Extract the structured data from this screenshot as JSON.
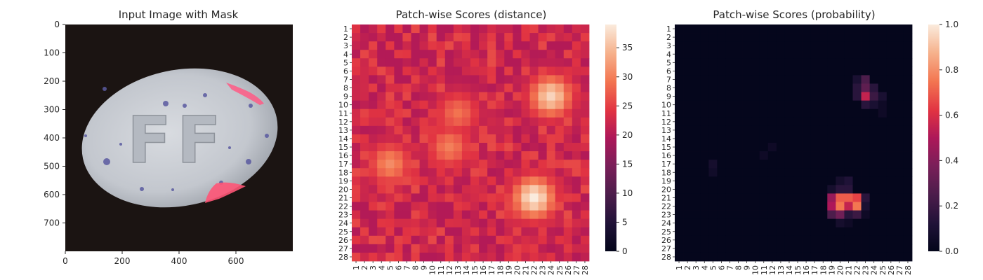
{
  "panels": {
    "image": {
      "title": "Input Image with Mask",
      "x_ticks": [
        "0",
        "200",
        "400",
        "600"
      ],
      "y_ticks": [
        "0",
        "100",
        "200",
        "300",
        "400",
        "500",
        "600",
        "700"
      ],
      "x_range": [
        0,
        800
      ],
      "y_range": [
        0,
        800
      ],
      "pill_imprint": "FF",
      "mask_color": "#ff5577"
    },
    "distance": {
      "title": "Patch-wise Scores (distance)",
      "colorbar_ticks": [
        "0",
        "5",
        "10",
        "15",
        "20",
        "25",
        "30",
        "35"
      ]
    },
    "probability": {
      "title": "Patch-wise Scores (probability)",
      "colorbar_ticks": [
        "0.0",
        "0.2",
        "0.4",
        "0.6",
        "0.8",
        "1.0"
      ]
    }
  },
  "chart_data": [
    {
      "type": "image",
      "title": "Input Image with Mask",
      "x_range": [
        0,
        800
      ],
      "y_range": [
        800,
        0
      ],
      "x_ticks": [
        0,
        200,
        400,
        600
      ],
      "y_ticks": [
        0,
        100,
        200,
        300,
        400,
        500,
        600,
        700
      ]
    },
    {
      "type": "heatmap",
      "title": "Patch-wise Scores (distance)",
      "rows": 28,
      "cols": 28,
      "tick_labels": [
        "1",
        "2",
        "3",
        "4",
        "5",
        "6",
        "7",
        "8",
        "9",
        "10",
        "11",
        "12",
        "13",
        "14",
        "15",
        "16",
        "17",
        "18",
        "19",
        "20",
        "21",
        "22",
        "23",
        "24",
        "25",
        "26",
        "27",
        "28"
      ],
      "value_range": [
        0,
        39
      ],
      "colormap": "rocket",
      "baseline": 22,
      "hotspots": [
        {
          "row": 9,
          "col": 24,
          "peak": 37
        },
        {
          "row": 21,
          "col": 22,
          "peak": 39
        },
        {
          "row": 11,
          "col": 13,
          "peak": 29
        },
        {
          "row": 15,
          "col": 12,
          "peak": 30
        },
        {
          "row": 17,
          "col": 5,
          "peak": 31
        }
      ]
    },
    {
      "type": "heatmap",
      "title": "Patch-wise Scores (probability)",
      "rows": 28,
      "cols": 28,
      "tick_labels": [
        "1",
        "2",
        "3",
        "4",
        "5",
        "6",
        "7",
        "8",
        "9",
        "10",
        "11",
        "12",
        "13",
        "14",
        "15",
        "16",
        "17",
        "18",
        "19",
        "20",
        "21",
        "22",
        "23",
        "24",
        "25",
        "26",
        "27",
        "28"
      ],
      "value_range": [
        0.0,
        1.0
      ],
      "colormap": "rocket",
      "cells": [
        {
          "row": 7,
          "col": 22,
          "value": 0.1
        },
        {
          "row": 7,
          "col": 23,
          "value": 0.25
        },
        {
          "row": 8,
          "col": 22,
          "value": 0.15
        },
        {
          "row": 8,
          "col": 23,
          "value": 0.3
        },
        {
          "row": 8,
          "col": 24,
          "value": 0.15
        },
        {
          "row": 9,
          "col": 22,
          "value": 0.15
        },
        {
          "row": 9,
          "col": 23,
          "value": 0.55
        },
        {
          "row": 9,
          "col": 24,
          "value": 0.2
        },
        {
          "row": 9,
          "col": 25,
          "value": 0.1
        },
        {
          "row": 10,
          "col": 23,
          "value": 0.15
        },
        {
          "row": 10,
          "col": 24,
          "value": 0.1
        },
        {
          "row": 10,
          "col": 25,
          "value": 0.05
        },
        {
          "row": 11,
          "col": 25,
          "value": 0.05
        },
        {
          "row": 15,
          "col": 12,
          "value": 0.05
        },
        {
          "row": 16,
          "col": 11,
          "value": 0.05
        },
        {
          "row": 17,
          "col": 5,
          "value": 0.08
        },
        {
          "row": 18,
          "col": 5,
          "value": 0.06
        },
        {
          "row": 19,
          "col": 20,
          "value": 0.08
        },
        {
          "row": 19,
          "col": 21,
          "value": 0.12
        },
        {
          "row": 20,
          "col": 19,
          "value": 0.08
        },
        {
          "row": 20,
          "col": 20,
          "value": 0.15
        },
        {
          "row": 20,
          "col": 21,
          "value": 0.15
        },
        {
          "row": 21,
          "col": 19,
          "value": 0.45
        },
        {
          "row": 21,
          "col": 20,
          "value": 0.7
        },
        {
          "row": 21,
          "col": 21,
          "value": 0.7
        },
        {
          "row": 21,
          "col": 22,
          "value": 0.65
        },
        {
          "row": 21,
          "col": 23,
          "value": 0.15
        },
        {
          "row": 22,
          "col": 19,
          "value": 0.5
        },
        {
          "row": 22,
          "col": 20,
          "value": 0.75
        },
        {
          "row": 22,
          "col": 21,
          "value": 0.55
        },
        {
          "row": 22,
          "col": 22,
          "value": 0.75
        },
        {
          "row": 22,
          "col": 23,
          "value": 0.1
        },
        {
          "row": 23,
          "col": 19,
          "value": 0.25
        },
        {
          "row": 23,
          "col": 20,
          "value": 0.35
        },
        {
          "row": 23,
          "col": 21,
          "value": 0.15
        },
        {
          "row": 23,
          "col": 22,
          "value": 0.2
        },
        {
          "row": 23,
          "col": 23,
          "value": 0.05
        },
        {
          "row": 24,
          "col": 20,
          "value": 0.08
        },
        {
          "row": 24,
          "col": 21,
          "value": 0.05
        }
      ]
    }
  ]
}
